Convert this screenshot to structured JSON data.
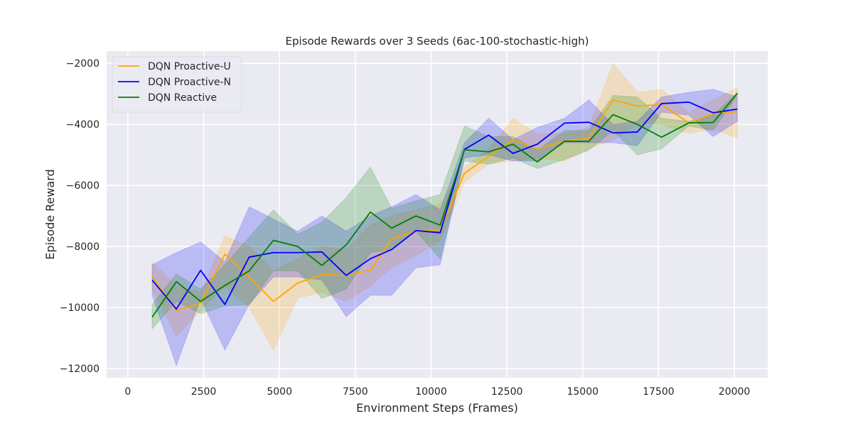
{
  "chart_data": {
    "type": "line",
    "title": "Episode Rewards over 3 Seeds (6ac-100-stochastic-high)",
    "xlabel": "Environment Steps (Frames)",
    "ylabel": "Episode Reward",
    "xlim": [
      -700,
      21100
    ],
    "ylim": [
      -12300,
      -1600
    ],
    "xticks": [
      0,
      2500,
      5000,
      7500,
      10000,
      12500,
      15000,
      17500,
      20000
    ],
    "xtick_labels": [
      "0",
      "2500",
      "5000",
      "7500",
      "10000",
      "12500",
      "15000",
      "17500",
      "20000"
    ],
    "yticks": [
      -12000,
      -10000,
      -8000,
      -6000,
      -4000,
      -2000
    ],
    "ytick_labels": [
      "−12000",
      "−10000",
      "−8000",
      "−6000",
      "−4000",
      "−2000"
    ],
    "grid": true,
    "background": "#eaeaf2",
    "legend_position": "top-left",
    "x": [
      800,
      1600,
      2400,
      3200,
      4000,
      4800,
      5600,
      6400,
      7200,
      8000,
      8700,
      9500,
      10300,
      11100,
      11900,
      12700,
      13500,
      14400,
      15200,
      16000,
      16800,
      17600,
      18500,
      19300,
      20100
    ],
    "series": [
      {
        "name": "DQN Proactive-U",
        "color": "#ffa500",
        "values": [
          -8980,
          -10100,
          -9850,
          -8250,
          -9000,
          -9800,
          -9200,
          -8920,
          -8950,
          -8780,
          -7750,
          -7500,
          -7450,
          -5600,
          -5050,
          -4500,
          -4800,
          -4550,
          -4450,
          -3200,
          -3400,
          -3350,
          -3950,
          -3650,
          -3580
        ],
        "upper": [
          -8500,
          -9300,
          -9500,
          -7650,
          -8000,
          -8800,
          -8400,
          -8000,
          -8100,
          -7300,
          -7000,
          -6800,
          -6600,
          -5400,
          -4800,
          -3800,
          -4300,
          -4300,
          -4100,
          -2000,
          -2950,
          -2850,
          -3600,
          -3200,
          -2800
        ],
        "lower": [
          -9400,
          -10950,
          -10100,
          -9300,
          -10000,
          -11400,
          -9700,
          -9500,
          -9800,
          -9300,
          -8700,
          -8300,
          -7800,
          -5900,
          -5300,
          -5200,
          -5100,
          -5200,
          -4800,
          -4500,
          -4000,
          -4000,
          -4300,
          -4150,
          -4450
        ]
      },
      {
        "name": "DQN Proactive-N",
        "color": "#0000ff",
        "values": [
          -9100,
          -10050,
          -8780,
          -9900,
          -8350,
          -8200,
          -8200,
          -8180,
          -8950,
          -8400,
          -8100,
          -7480,
          -7550,
          -4820,
          -4350,
          -4950,
          -4650,
          -3960,
          -3930,
          -4280,
          -4250,
          -3320,
          -3270,
          -3620,
          -3500
        ],
        "upper": [
          -8600,
          -8200,
          -7850,
          -8500,
          -6700,
          -7100,
          -7500,
          -7000,
          -7500,
          -7000,
          -6700,
          -6300,
          -6800,
          -4600,
          -3800,
          -4500,
          -4100,
          -3800,
          -3200,
          -4000,
          -3900,
          -3100,
          -2950,
          -2850,
          -3100
        ],
        "lower": [
          -9600,
          -11900,
          -9700,
          -11400,
          -9900,
          -9000,
          -9000,
          -9100,
          -10300,
          -9600,
          -9600,
          -8700,
          -8600,
          -5100,
          -5000,
          -5200,
          -5200,
          -4600,
          -4600,
          -4600,
          -4700,
          -3600,
          -3700,
          -4400,
          -3900
        ]
      },
      {
        "name": "DQN Reactive",
        "color": "#008000",
        "values": [
          -10320,
          -9150,
          -9800,
          -9280,
          -8800,
          -7800,
          -8000,
          -8620,
          -7950,
          -6870,
          -7400,
          -7000,
          -7300,
          -4830,
          -4900,
          -4650,
          -5230,
          -4550,
          -4560,
          -3680,
          -4000,
          -4420,
          -3950,
          -3940,
          -2980
        ],
        "upper": [
          -9900,
          -8900,
          -9400,
          -8600,
          -7700,
          -6800,
          -7600,
          -7200,
          -6400,
          -5400,
          -6750,
          -6500,
          -6300,
          -4050,
          -4400,
          -4400,
          -4850,
          -4200,
          -4200,
          -3050,
          -3100,
          -3800,
          -3900,
          -3700,
          -2950
        ],
        "lower": [
          -10700,
          -9800,
          -10200,
          -9950,
          -9900,
          -8800,
          -8800,
          -9700,
          -9400,
          -8200,
          -8100,
          -7500,
          -8400,
          -5200,
          -5300,
          -5100,
          -5450,
          -5150,
          -4850,
          -4200,
          -5000,
          -4800,
          -4050,
          -4200,
          -3050
        ]
      }
    ]
  }
}
